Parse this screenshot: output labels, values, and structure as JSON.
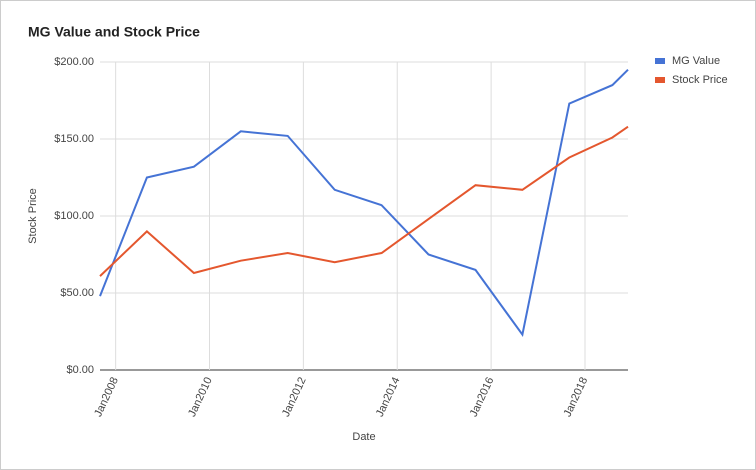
{
  "chart_data": {
    "type": "line",
    "title": "MG Value and Stock Price",
    "x_label": "Date",
    "y_label": "Stock Price",
    "x": [
      "2007-09",
      "2008-09",
      "2009-09",
      "2010-09",
      "2011-09",
      "2012-09",
      "2013-09",
      "2014-09",
      "2015-09",
      "2016-09",
      "2017-09",
      "2018-08",
      "2018-12"
    ],
    "series": [
      {
        "name": "MG Value",
        "color": "#4573d5",
        "values": [
          48,
          125,
          132,
          155,
          152,
          117,
          107,
          75,
          65,
          23,
          173,
          185,
          195
        ]
      },
      {
        "name": "Stock Price",
        "color": "#e4572e",
        "values": [
          61,
          90,
          63,
          71,
          76,
          70,
          76,
          98,
          120,
          117,
          138,
          151,
          158
        ]
      }
    ],
    "xlim": [
      "2007-09",
      "2018-12"
    ],
    "xticks": [
      {
        "value": "2008-01",
        "label": "Jan2008"
      },
      {
        "value": "2010-01",
        "label": "Jan2010"
      },
      {
        "value": "2012-01",
        "label": "Jan2012"
      },
      {
        "value": "2014-01",
        "label": "Jan2014"
      },
      {
        "value": "2016-01",
        "label": "Jan2016"
      },
      {
        "value": "2018-01",
        "label": "Jan2018"
      }
    ],
    "ylim": [
      0,
      200
    ],
    "yticks": [
      {
        "value": 0,
        "label": "$0.00"
      },
      {
        "value": 50,
        "label": "$50.00"
      },
      {
        "value": 100,
        "label": "$100.00"
      },
      {
        "value": 150,
        "label": "$150.00"
      },
      {
        "value": 200,
        "label": "$200.00"
      }
    ],
    "grid": true,
    "legend": "right"
  }
}
